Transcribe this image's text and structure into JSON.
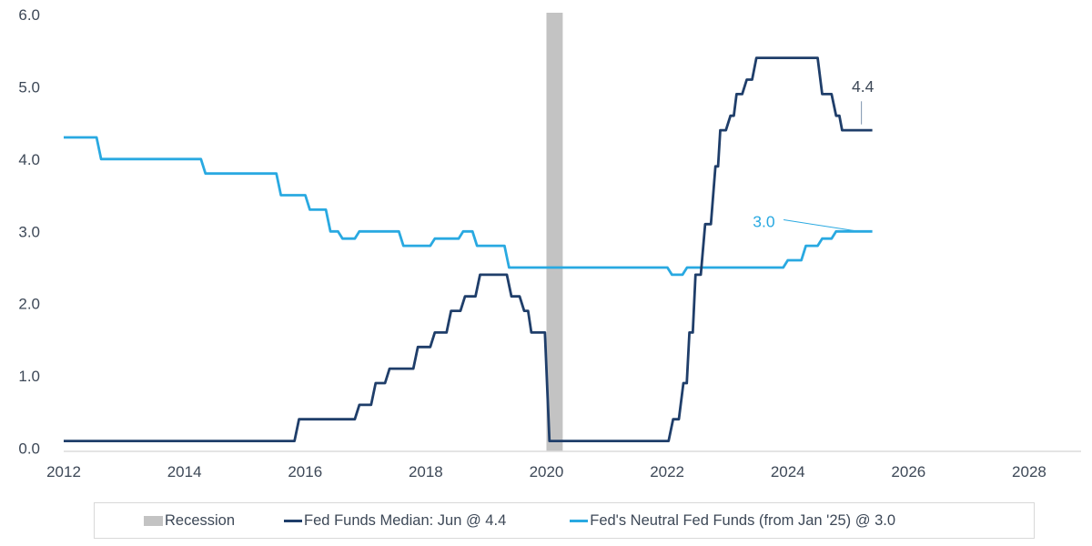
{
  "legend": {
    "recession_label": "Recession",
    "series1_label": "Fed Funds Median: Jun @ 4.4",
    "series2_label": "Fed's Neutral Fed Funds (from Jan '25) @ 3.0"
  },
  "colors": {
    "navy": "#1f3e6a",
    "cyan": "#29a9e1",
    "recession_gray": "#c3c3c3",
    "axis_line": "#dcdcdc",
    "text": "#3d4857",
    "leader_navy": "#7d93ad",
    "legend_border": "#d8d8d8"
  },
  "chart_data": {
    "type": "line",
    "title": "",
    "xlabel": "",
    "ylabel": "",
    "grid": false,
    "legend_position": "bottom",
    "x_axis": {
      "ticks": [
        2012,
        2014,
        2016,
        2018,
        2020,
        2022,
        2024,
        2026,
        2028
      ],
      "range": [
        2012,
        2028.86
      ]
    },
    "y_axis": {
      "tick_labels": [
        "0.0",
        "1.0",
        "2.0",
        "3.0",
        "4.0",
        "5.0",
        "6.0"
      ],
      "tick_values": [
        0,
        1,
        2,
        3,
        4,
        5,
        6
      ],
      "range": [
        0,
        6
      ]
    },
    "recession_bands": [
      {
        "start": 2020.0,
        "end": 2020.27
      }
    ],
    "series": [
      {
        "name": "Fed's Neutral Fed Funds (from Jan '25) @ 3.0",
        "color_key": "cyan",
        "interpolation": "step",
        "end_x": 2025.4,
        "points": [
          [
            2012.0,
            4.3
          ],
          [
            2012.62,
            4.0
          ],
          [
            2014.35,
            3.8
          ],
          [
            2015.6,
            3.5
          ],
          [
            2016.08,
            3.3
          ],
          [
            2016.42,
            3.0
          ],
          [
            2016.62,
            2.9
          ],
          [
            2016.9,
            3.0
          ],
          [
            2017.63,
            2.8
          ],
          [
            2018.15,
            2.9
          ],
          [
            2018.62,
            3.0
          ],
          [
            2018.85,
            2.8
          ],
          [
            2019.38,
            2.5
          ],
          [
            2022.08,
            2.4
          ],
          [
            2022.33,
            2.5
          ],
          [
            2024.0,
            2.6
          ],
          [
            2024.3,
            2.8
          ],
          [
            2024.57,
            2.9
          ],
          [
            2024.8,
            3.0
          ]
        ]
      },
      {
        "name": "Fed Funds Median: Jun @ 4.4",
        "color_key": "navy",
        "interpolation": "step",
        "end_x": 2025.4,
        "points": [
          [
            2012.0,
            0.1
          ],
          [
            2015.9,
            0.4
          ],
          [
            2016.9,
            0.6
          ],
          [
            2017.17,
            0.9
          ],
          [
            2017.4,
            1.1
          ],
          [
            2017.87,
            1.4
          ],
          [
            2018.15,
            1.6
          ],
          [
            2018.42,
            1.9
          ],
          [
            2018.65,
            2.1
          ],
          [
            2018.9,
            2.4
          ],
          [
            2019.42,
            2.1
          ],
          [
            2019.63,
            1.9
          ],
          [
            2019.75,
            1.6
          ],
          [
            2020.05,
            0.1
          ],
          [
            2022.1,
            0.4
          ],
          [
            2022.27,
            0.9
          ],
          [
            2022.37,
            1.6
          ],
          [
            2022.47,
            2.4
          ],
          [
            2022.63,
            3.1
          ],
          [
            2022.8,
            3.9
          ],
          [
            2022.88,
            4.4
          ],
          [
            2023.05,
            4.6
          ],
          [
            2023.15,
            4.9
          ],
          [
            2023.32,
            5.1
          ],
          [
            2023.48,
            5.4
          ],
          [
            2024.57,
            4.9
          ],
          [
            2024.8,
            4.6
          ],
          [
            2024.9,
            4.4
          ]
        ]
      }
    ],
    "annotations": [
      {
        "text": "4.4",
        "color_key": "text",
        "x": 2025.06,
        "y": 4.93,
        "anchor": "start",
        "leader_color_key": "leader_navy",
        "leader": [
          [
            2025.22,
            4.8
          ],
          [
            2025.22,
            4.48
          ]
        ]
      },
      {
        "text": "3.0",
        "color_key": "cyan",
        "x": 2023.42,
        "y": 3.06,
        "anchor": "start",
        "leader_color_key": "cyan",
        "leader": [
          [
            2023.93,
            3.16
          ],
          [
            2025.1,
            3.01
          ]
        ]
      }
    ]
  }
}
